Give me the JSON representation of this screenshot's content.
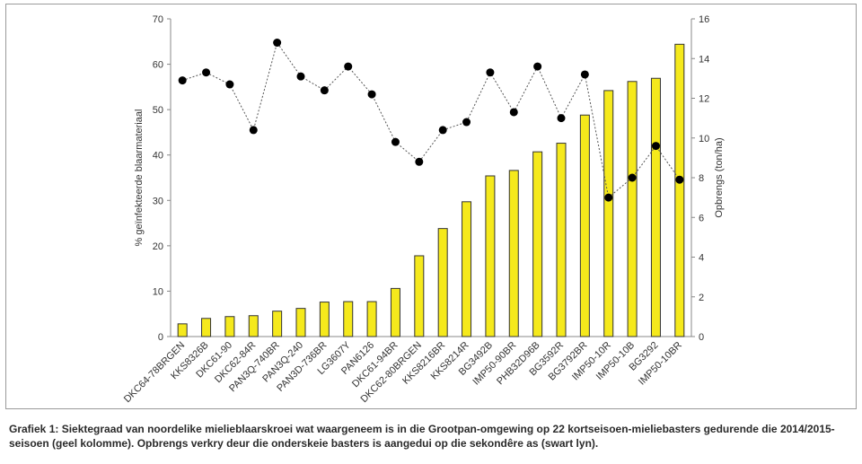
{
  "caption": "Grafiek 1: Siektegraad van noordelike mielieblaarskroei wat waargeneem is in die Grootpan-omgewing op 22 kortseisoen-mieliebasters gedurende die 2014/2015-seisoen (geel kolomme). Opbrengs verkry deur die onderskeie basters is aangedui op die sekondêre as (swart lyn).",
  "chart_data": {
    "type": "bar",
    "categories": [
      "DKC64-78BRGEN",
      "KKS8326B",
      "DKC61-90",
      "DKC62-84R",
      "PAN3Q-740BR",
      "PAN3Q-240",
      "PAN3D-736BR",
      "LG3607Y",
      "PAN6126",
      "DKC61-94BR",
      "DKC62-80BRGEN",
      "KKS8216BR",
      "KKS8214R",
      "BG3492B",
      "IMP50-90BR",
      "PHB32D96B",
      "BG3592R",
      "BG3792BR",
      "IMP50-10R",
      "IMP50-10B",
      "BG3292",
      "IMP50-10BR"
    ],
    "series": [
      {
        "type": "bar",
        "axis": "left",
        "color": "#f5e91c",
        "values": [
          2.8,
          4.0,
          4.4,
          4.6,
          5.6,
          6.2,
          7.6,
          7.7,
          7.7,
          10.6,
          17.8,
          23.8,
          29.7,
          35.4,
          36.6,
          40.7,
          42.6,
          48.8,
          54.2,
          56.2,
          56.9,
          64.4
        ]
      },
      {
        "type": "line",
        "axis": "right",
        "color": "#000000",
        "values": [
          12.9,
          13.3,
          12.7,
          10.4,
          14.8,
          13.1,
          12.4,
          13.6,
          12.2,
          9.8,
          8.8,
          10.4,
          10.8,
          13.3,
          11.3,
          13.6,
          11.0,
          13.2,
          7.0,
          8.0,
          9.6,
          7.9
        ]
      }
    ],
    "ylabel": "% geïnfekteerde blaarmateriaal",
    "y2label": "Opbrengs (ton/ha)",
    "ylim": [
      0,
      70
    ],
    "y2lim": [
      0,
      16
    ],
    "yticks": [
      "0",
      "10",
      "20",
      "30",
      "40",
      "50",
      "60",
      "70"
    ],
    "y2ticks": [
      "0",
      "2",
      "4",
      "6",
      "8",
      "10",
      "12",
      "14",
      "16"
    ],
    "grid": false
  }
}
